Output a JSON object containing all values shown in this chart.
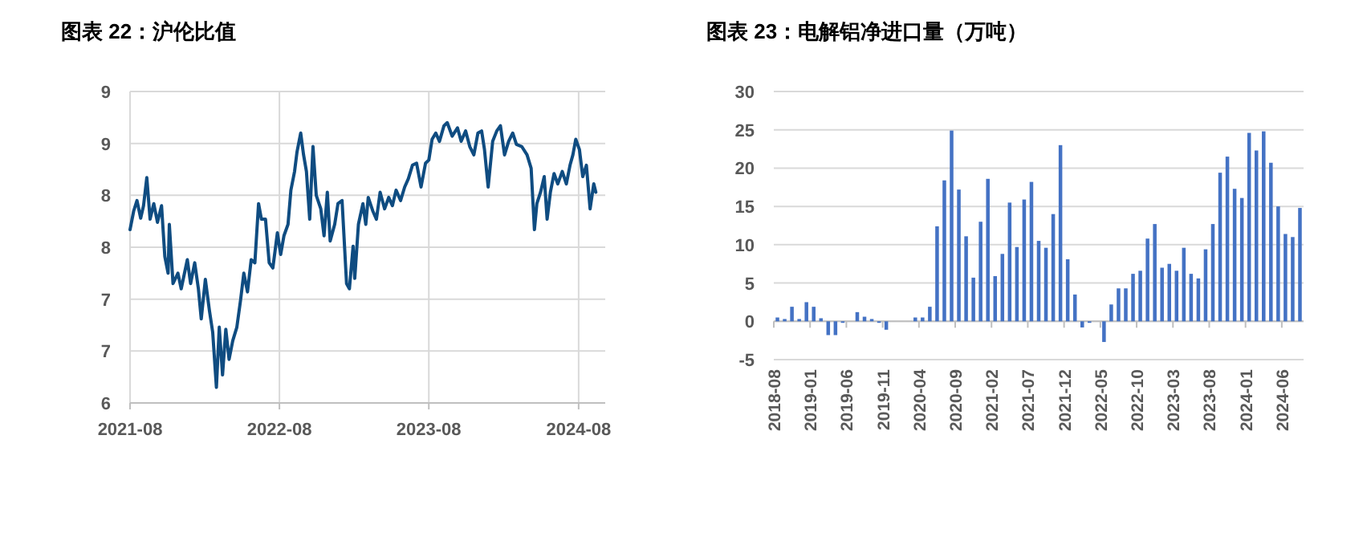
{
  "chart_data": [
    {
      "type": "line",
      "title": "图表 22：沪伦比值",
      "color": "#0f4c81",
      "grid": true,
      "x": [
        "2021-08-01",
        "2021-08-10",
        "2021-08-18",
        "2021-08-27",
        "2021-09-03",
        "2021-09-11",
        "2021-09-19",
        "2021-09-28",
        "2021-10-07",
        "2021-10-17",
        "2021-10-25",
        "2021-11-02",
        "2021-11-05",
        "2021-11-14",
        "2021-11-26",
        "2021-12-04",
        "2021-12-19",
        "2021-12-27",
        "2022-01-06",
        "2022-01-15",
        "2022-01-22",
        "2022-02-01",
        "2022-02-11",
        "2022-02-19",
        "2022-02-28",
        "2022-03-07",
        "2022-03-15",
        "2022-03-23",
        "2022-03-31",
        "2022-04-09",
        "2022-04-19",
        "2022-04-28",
        "2022-05-06",
        "2022-05-15",
        "2022-05-24",
        "2022-06-02",
        "2022-06-11",
        "2022-06-18",
        "2022-06-28",
        "2022-07-07",
        "2022-07-16",
        "2022-07-27",
        "2022-08-04",
        "2022-08-12",
        "2022-08-22",
        "2022-08-29",
        "2022-09-07",
        "2022-09-13",
        "2022-09-22",
        "2022-09-29",
        "2022-10-06",
        "2022-10-14",
        "2022-10-22",
        "2022-10-30",
        "2022-11-10",
        "2022-11-18",
        "2022-11-26",
        "2022-12-03",
        "2022-12-14",
        "2022-12-22",
        "2023-01-01",
        "2023-01-12",
        "2023-01-19",
        "2023-01-28",
        "2023-02-01",
        "2023-02-10",
        "2023-02-21",
        "2023-02-28",
        "2023-03-06",
        "2023-03-17",
        "2023-03-26",
        "2023-04-04",
        "2023-04-15",
        "2023-04-25",
        "2023-05-04",
        "2023-05-13",
        "2023-05-24",
        "2023-06-03",
        "2023-06-12",
        "2023-06-22",
        "2023-07-02",
        "2023-07-13",
        "2023-07-24",
        "2023-08-01",
        "2023-08-09",
        "2023-08-18",
        "2023-08-27",
        "2023-09-07",
        "2023-09-15",
        "2023-09-27",
        "2023-10-10",
        "2023-10-19",
        "2023-10-30",
        "2023-11-09",
        "2023-11-19",
        "2023-11-29",
        "2023-12-08",
        "2023-12-15",
        "2023-12-24",
        "2024-01-04",
        "2024-01-14",
        "2024-01-23",
        "2024-02-02",
        "2024-02-12",
        "2024-02-22",
        "2024-03-02",
        "2024-03-15",
        "2024-03-28",
        "2024-04-07",
        "2024-04-15",
        "2024-04-21",
        "2024-04-30",
        "2024-05-09",
        "2024-05-16",
        "2024-05-24",
        "2024-06-02",
        "2024-06-11",
        "2024-06-22",
        "2024-07-02",
        "2024-07-11",
        "2024-07-18",
        "2024-07-25",
        "2024-08-03",
        "2024-08-11",
        "2024-08-20",
        "2024-08-29",
        "2024-09-07",
        "2024-09-12"
      ],
      "values": [
        7.67,
        7.85,
        7.95,
        7.78,
        7.9,
        8.17,
        7.77,
        7.92,
        7.74,
        7.9,
        7.41,
        7.25,
        7.72,
        7.15,
        7.25,
        7.1,
        7.38,
        7.15,
        7.35,
        7.1,
        6.81,
        7.19,
        6.89,
        6.68,
        6.15,
        6.73,
        6.27,
        6.71,
        6.42,
        6.6,
        6.73,
        6.99,
        7.25,
        7.07,
        7.38,
        7.35,
        7.92,
        7.77,
        7.77,
        7.35,
        7.3,
        7.64,
        7.43,
        7.61,
        7.72,
        8.05,
        8.23,
        8.42,
        8.6,
        8.39,
        8.23,
        7.77,
        8.47,
        8.0,
        7.87,
        7.61,
        8.03,
        7.56,
        7.72,
        7.92,
        7.95,
        7.15,
        7.1,
        7.51,
        7.2,
        7.72,
        7.92,
        7.72,
        7.98,
        7.85,
        7.77,
        8.03,
        7.87,
        7.98,
        7.9,
        8.05,
        7.95,
        8.08,
        8.16,
        8.29,
        8.31,
        8.08,
        8.31,
        8.34,
        8.54,
        8.6,
        8.52,
        8.67,
        8.7,
        8.57,
        8.65,
        8.52,
        8.62,
        8.47,
        8.39,
        8.6,
        8.62,
        8.44,
        8.08,
        8.52,
        8.62,
        8.67,
        8.39,
        8.52,
        8.6,
        8.49,
        8.47,
        8.39,
        8.26,
        7.67,
        7.92,
        8.03,
        8.18,
        7.77,
        8.03,
        8.21,
        8.11,
        8.23,
        8.11,
        8.29,
        8.39,
        8.54,
        8.44,
        8.18,
        8.29,
        7.87,
        8.11,
        8.03
      ],
      "xlim": [
        "2021-08-01",
        "2024-10-05"
      ],
      "xticks": [
        "2021-08",
        "2022-08",
        "2023-08",
        "2024-08"
      ],
      "ylim": [
        6,
        9
      ],
      "yticks": [
        6,
        {
          "value": 6.5,
          "label": "7"
        },
        7,
        {
          "value": 7.5,
          "label": "8"
        },
        8,
        {
          "value": 8.5,
          "label": "9"
        },
        9
      ]
    },
    {
      "type": "bar",
      "title": "图表 23：电解铝净进口量（万吨）",
      "color": "#4472c4",
      "grid": "y",
      "categories": [
        "2018-08",
        null,
        null,
        null,
        null,
        "2019-01",
        null,
        null,
        null,
        null,
        "2019-06",
        null,
        null,
        null,
        null,
        "2019-11",
        null,
        null,
        null,
        null,
        "2020-04",
        null,
        null,
        null,
        null,
        "2020-09",
        null,
        null,
        null,
        null,
        "2021-02",
        null,
        null,
        null,
        null,
        "2021-07",
        null,
        null,
        null,
        null,
        "2021-12",
        null,
        null,
        null,
        null,
        "2022-05",
        null,
        null,
        null,
        null,
        "2022-10",
        null,
        null,
        null,
        null,
        "2023-03",
        null,
        null,
        null,
        null,
        "2023-08",
        null,
        null,
        null,
        null,
        "2024-01",
        null,
        null,
        null,
        null,
        "2024-06",
        null,
        null
      ],
      "values": [
        0.5,
        0.3,
        1.9,
        0.3,
        2.5,
        1.9,
        0.4,
        -1.8,
        -1.8,
        -0.2,
        0,
        1.2,
        0.6,
        0.3,
        -0.2,
        -1.1,
        0,
        0,
        0,
        0.5,
        0.5,
        1.9,
        12.4,
        18.4,
        24.9,
        17.2,
        11.1,
        5.7,
        13.0,
        18.6,
        5.9,
        8.8,
        15.5,
        9.7,
        15.9,
        18.2,
        10.5,
        9.6,
        14.0,
        23.0,
        8.1,
        3.5,
        -0.8,
        -0.2,
        0,
        -2.7,
        2.2,
        4.3,
        4.3,
        6.2,
        6.6,
        10.8,
        12.7,
        7.0,
        7.5,
        6.6,
        9.6,
        6.2,
        5.6,
        9.4,
        12.7,
        19.4,
        21.5,
        17.3,
        16.1,
        24.6,
        22.3,
        24.8,
        20.7,
        15.0,
        11.4,
        11.0,
        14.8
      ],
      "ylim": [
        -5,
        30
      ],
      "yticks": [
        -5,
        0,
        5,
        10,
        15,
        20,
        25,
        30
      ]
    }
  ]
}
